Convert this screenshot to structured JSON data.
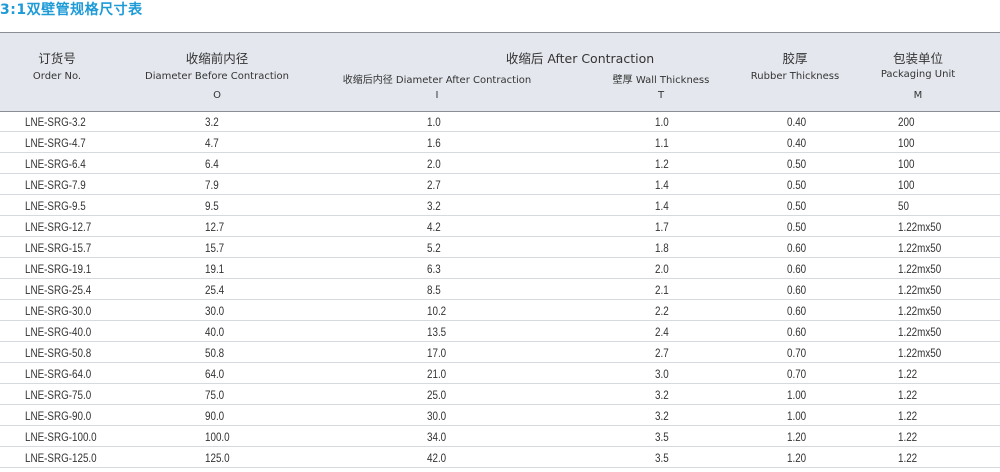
{
  "title": "3:1双壁管规格尺寸表",
  "header": {
    "order_cn": "订货号",
    "order_en": "Order No.",
    "before_cn": "收缩前内径",
    "before_en": "Diameter Before Contraction",
    "before_sym": "O",
    "after_group": "收缩后 After Contraction",
    "after_diam": "收缩后内径 Diameter After Contraction",
    "after_diam_sym": "I",
    "wall": "壁厚 Wall Thickness",
    "wall_sym": "T",
    "rubber_cn": "胶厚",
    "rubber_en": "Rubber Thickness",
    "pack_cn": "包装单位",
    "pack_en": "Packaging Unit",
    "pack_sym": "M"
  },
  "rows": [
    [
      "LNE-SRG-3.2",
      "3.2",
      "1.0",
      "1.0",
      "0.40",
      "200"
    ],
    [
      "LNE-SRG-4.7",
      "4.7",
      "1.6",
      "1.1",
      "0.40",
      "100"
    ],
    [
      "LNE-SRG-6.4",
      "6.4",
      "2.0",
      "1.2",
      "0.50",
      "100"
    ],
    [
      "LNE-SRG-7.9",
      "7.9",
      "2.7",
      "1.4",
      "0.50",
      "100"
    ],
    [
      "LNE-SRG-9.5",
      "9.5",
      "3.2",
      "1.4",
      "0.50",
      "50"
    ],
    [
      "LNE-SRG-12.7",
      "12.7",
      "4.2",
      "1.7",
      "0.50",
      "1.22mx50"
    ],
    [
      "LNE-SRG-15.7",
      "15.7",
      "5.2",
      "1.8",
      "0.60",
      "1.22mx50"
    ],
    [
      "LNE-SRG-19.1",
      "19.1",
      "6.3",
      "2.0",
      "0.60",
      "1.22mx50"
    ],
    [
      "LNE-SRG-25.4",
      "25.4",
      "8.5",
      "2.1",
      "0.60",
      "1.22mx50"
    ],
    [
      "LNE-SRG-30.0",
      "30.0",
      "10.2",
      "2.2",
      "0.60",
      "1.22mx50"
    ],
    [
      "LNE-SRG-40.0",
      "40.0",
      "13.5",
      "2.4",
      "0.60",
      "1.22mx50"
    ],
    [
      "LNE-SRG-50.8",
      "50.8",
      "17.0",
      "2.7",
      "0.70",
      "1.22mx50"
    ],
    [
      "LNE-SRG-64.0",
      "64.0",
      "21.0",
      "3.0",
      "0.70",
      "1.22"
    ],
    [
      "LNE-SRG-75.0",
      "75.0",
      "25.0",
      "3.2",
      "1.00",
      "1.22"
    ],
    [
      "LNE-SRG-90.0",
      "90.0",
      "30.0",
      "3.2",
      "1.00",
      "1.22"
    ],
    [
      "LNE-SRG-100.0",
      "100.0",
      "34.0",
      "3.5",
      "1.20",
      "1.22"
    ],
    [
      "LNE-SRG-125.0",
      "125.0",
      "42.0",
      "3.5",
      "1.20",
      "1.22"
    ]
  ]
}
